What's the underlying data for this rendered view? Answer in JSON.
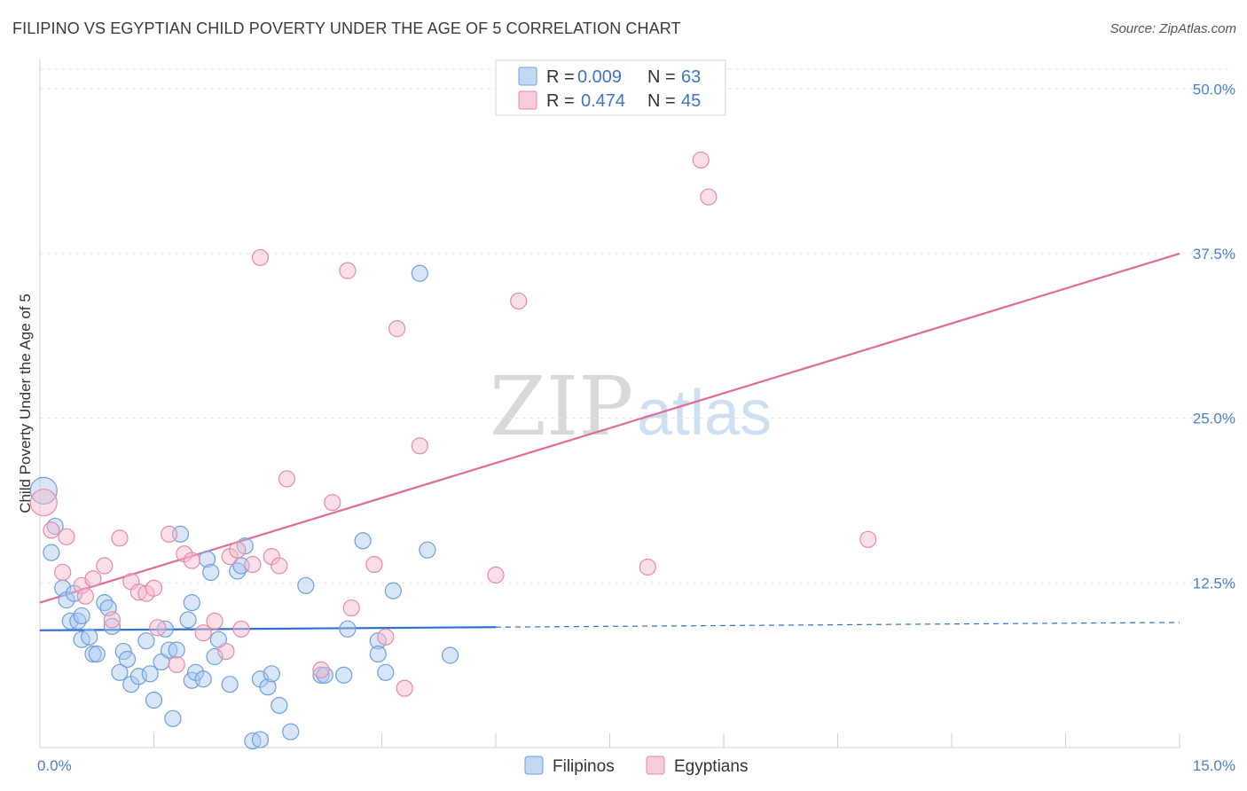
{
  "title": "FILIPINO VS EGYPTIAN CHILD POVERTY UNDER THE AGE OF 5 CORRELATION CHART",
  "source": "Source: ZipAtlas.com",
  "watermark": {
    "zip": "ZIP",
    "atlas": "atlas"
  },
  "legend": {
    "rows": [
      {
        "r_label": "R = ",
        "r_value": "0.009",
        "n_label": "N = ",
        "n_value": "63",
        "color": "#a8c8f0",
        "stroke": "#6e9fdc"
      },
      {
        "r_label": "R = ",
        "r_value": "0.474",
        "n_label": "N = ",
        "n_value": "45",
        "color": "#f6b8c9",
        "stroke": "#e58aa6"
      }
    ]
  },
  "bottom_legend": [
    "Filipinos",
    "Egyptians"
  ],
  "chart_data": {
    "type": "scatter",
    "title": "FILIPINO VS EGYPTIAN CHILD POVERTY UNDER THE AGE OF 5 CORRELATION CHART",
    "xlabel": "",
    "ylabel": "Child Poverty Under the Age of 5",
    "xlim": [
      0,
      15
    ],
    "ylim": [
      0,
      51.5
    ],
    "x_tick_labels": [
      "0.0%",
      "15.0%"
    ],
    "y_ticks": [
      12.5,
      25.0,
      37.5,
      50.0
    ],
    "y_tick_labels": [
      "12.5%",
      "25.0%",
      "37.5%",
      "50.0%"
    ],
    "grid": true,
    "legend_position": "top-center",
    "series": [
      {
        "name": "Filipinos",
        "color": "#a8c8f0",
        "stroke": "#6e9fdc",
        "line_color": "#2f6fd0",
        "trend": {
          "x0": 0,
          "y0": 8.9,
          "x1": 15,
          "y1": 9.5,
          "solid_until": 6
        },
        "points": [
          [
            0.05,
            19.5
          ],
          [
            0.2,
            16.8
          ],
          [
            0.15,
            14.8
          ],
          [
            0.3,
            12.1
          ],
          [
            0.35,
            11.2
          ],
          [
            0.45,
            11.7
          ],
          [
            0.4,
            9.6
          ],
          [
            0.5,
            9.6
          ],
          [
            0.55,
            10.0
          ],
          [
            0.55,
            8.2
          ],
          [
            0.65,
            8.4
          ],
          [
            0.7,
            7.1
          ],
          [
            0.85,
            11.0
          ],
          [
            0.9,
            10.6
          ],
          [
            0.95,
            9.2
          ],
          [
            0.75,
            7.1
          ],
          [
            1.1,
            7.3
          ],
          [
            1.15,
            6.7
          ],
          [
            1.05,
            5.7
          ],
          [
            1.2,
            4.8
          ],
          [
            1.3,
            5.4
          ],
          [
            1.45,
            5.6
          ],
          [
            1.5,
            3.6
          ],
          [
            1.4,
            8.1
          ],
          [
            1.6,
            6.5
          ],
          [
            1.7,
            7.4
          ],
          [
            1.8,
            7.4
          ],
          [
            1.85,
            16.2
          ],
          [
            1.95,
            9.7
          ],
          [
            2.0,
            5.1
          ],
          [
            2.05,
            5.7
          ],
          [
            2.15,
            5.2
          ],
          [
            1.75,
            2.2
          ],
          [
            2.2,
            14.3
          ],
          [
            2.25,
            13.3
          ],
          [
            2.3,
            6.9
          ],
          [
            2.35,
            8.2
          ],
          [
            2.5,
            4.8
          ],
          [
            2.6,
            13.4
          ],
          [
            2.65,
            13.8
          ],
          [
            2.7,
            15.3
          ],
          [
            2.8,
            0.5
          ],
          [
            2.9,
            0.6
          ],
          [
            2.9,
            5.2
          ],
          [
            3.0,
            4.6
          ],
          [
            3.05,
            5.6
          ],
          [
            3.15,
            3.2
          ],
          [
            3.3,
            1.2
          ],
          [
            3.5,
            12.3
          ],
          [
            3.7,
            5.5
          ],
          [
            3.75,
            5.5
          ],
          [
            4.0,
            5.5
          ],
          [
            4.05,
            9.0
          ],
          [
            4.25,
            15.7
          ],
          [
            4.45,
            8.1
          ],
          [
            4.45,
            7.1
          ],
          [
            4.55,
            5.7
          ],
          [
            4.65,
            11.9
          ],
          [
            5.0,
            36.0
          ],
          [
            5.1,
            15.0
          ],
          [
            5.4,
            7.0
          ],
          [
            1.65,
            9.0
          ],
          [
            2.0,
            11.0
          ]
        ]
      },
      {
        "name": "Egyptians",
        "color": "#f6b8c9",
        "stroke": "#e58aa6",
        "line_color": "#e06b95",
        "trend": {
          "x0": 0,
          "y0": 11.0,
          "x1": 15,
          "y1": 37.5,
          "solid_until": 15
        },
        "points": [
          [
            0.05,
            18.6
          ],
          [
            0.15,
            16.5
          ],
          [
            0.35,
            16.0
          ],
          [
            0.3,
            13.3
          ],
          [
            0.55,
            12.3
          ],
          [
            0.6,
            11.5
          ],
          [
            0.7,
            12.8
          ],
          [
            0.85,
            13.8
          ],
          [
            0.95,
            9.7
          ],
          [
            1.05,
            15.9
          ],
          [
            1.2,
            12.6
          ],
          [
            1.3,
            11.8
          ],
          [
            1.4,
            11.7
          ],
          [
            1.5,
            12.1
          ],
          [
            1.55,
            9.1
          ],
          [
            1.7,
            16.2
          ],
          [
            1.8,
            6.3
          ],
          [
            1.9,
            14.7
          ],
          [
            2.0,
            14.2
          ],
          [
            2.15,
            8.7
          ],
          [
            2.3,
            9.6
          ],
          [
            2.45,
            7.3
          ],
          [
            2.5,
            14.5
          ],
          [
            2.6,
            15.0
          ],
          [
            2.65,
            9.0
          ],
          [
            2.8,
            13.9
          ],
          [
            2.9,
            37.2
          ],
          [
            3.05,
            14.5
          ],
          [
            3.15,
            13.8
          ],
          [
            3.25,
            20.4
          ],
          [
            3.7,
            5.9
          ],
          [
            3.85,
            18.6
          ],
          [
            4.05,
            36.2
          ],
          [
            4.1,
            10.6
          ],
          [
            4.4,
            13.9
          ],
          [
            4.55,
            8.4
          ],
          [
            4.7,
            31.8
          ],
          [
            4.8,
            4.5
          ],
          [
            5.0,
            22.9
          ],
          [
            6.0,
            13.1
          ],
          [
            6.3,
            33.9
          ],
          [
            8.0,
            13.7
          ],
          [
            8.7,
            44.6
          ],
          [
            8.8,
            41.8
          ],
          [
            10.9,
            15.8
          ]
        ]
      }
    ]
  }
}
